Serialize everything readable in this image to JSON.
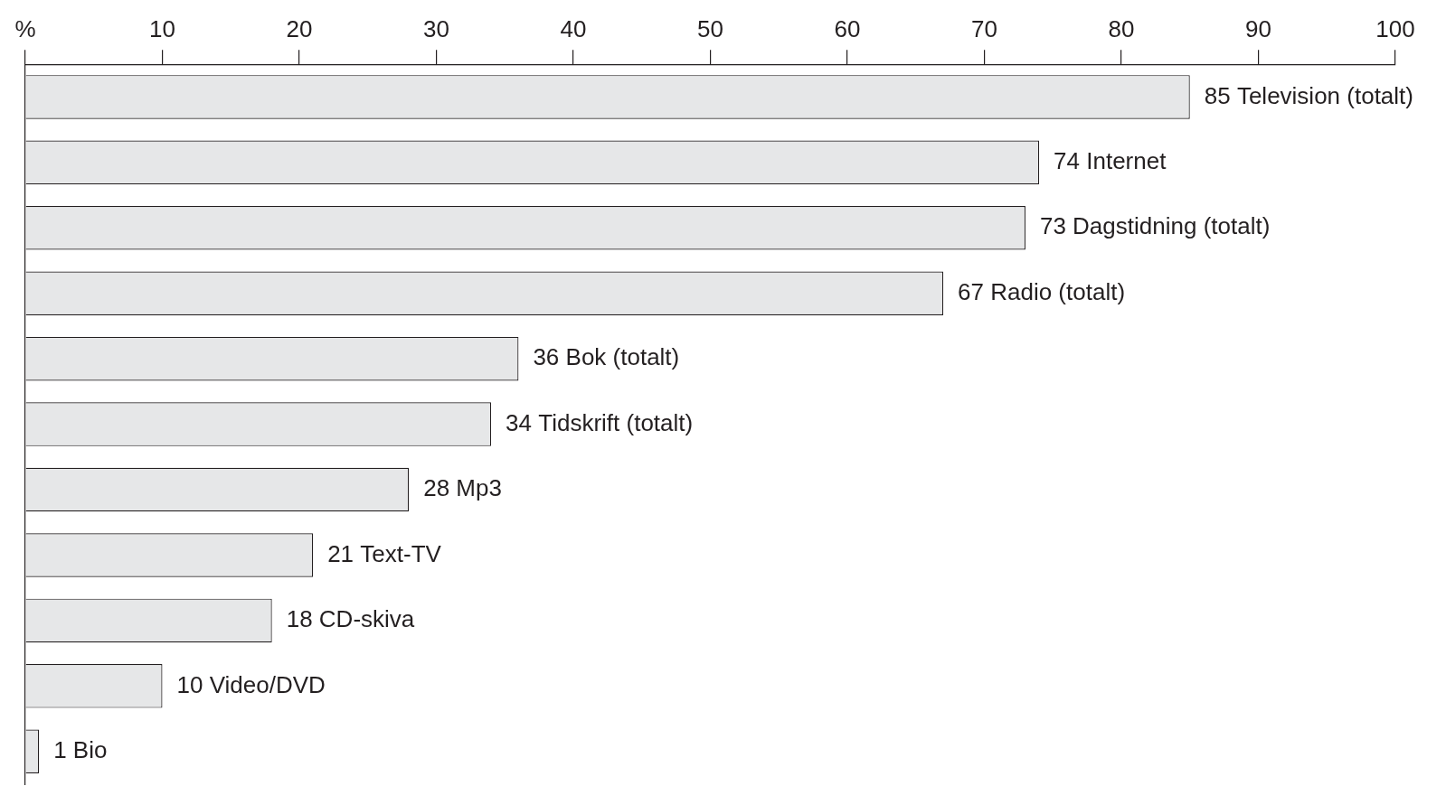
{
  "chart_data": {
    "type": "bar",
    "orientation": "horizontal",
    "categories": [
      "Television (totalt)",
      "Internet",
      "Dagstidning (totalt)",
      "Radio (totalt)",
      "Bok (totalt)",
      "Tidskrift (totalt)",
      "Mp3",
      "Text-TV",
      "CD-skiva",
      "Video/DVD",
      "Bio"
    ],
    "values": [
      85,
      74,
      73,
      67,
      36,
      34,
      28,
      21,
      18,
      10,
      1
    ],
    "color": "#e6e7e8",
    "xlim": [
      0,
      100
    ],
    "xticks": [
      {
        "value": 0,
        "label": "%"
      },
      10,
      20,
      30,
      40,
      50,
      60,
      70,
      80,
      90,
      100
    ],
    "tick_labels": "x",
    "grid": false,
    "legend": false,
    "data_labels": true
  }
}
